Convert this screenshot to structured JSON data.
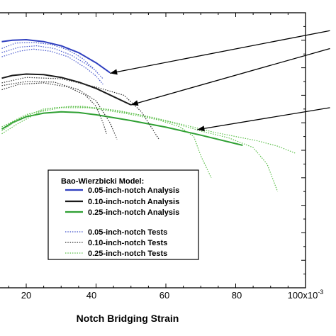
{
  "chart_data": {
    "type": "line",
    "xlabel": "Notch Bridging Strain",
    "ylabel": "",
    "x_tick_labels": [
      "20",
      "40",
      "60",
      "80",
      "100x10"
    ],
    "x_tick_values": [
      20,
      40,
      60,
      80,
      100
    ],
    "x_scale_exponent": "-3",
    "xlim": [
      13,
      103
    ],
    "ylim": [
      0,
      1
    ],
    "legend": {
      "title": "Bao-Wierzbicki Model:",
      "placement": "bottom-center",
      "entries": [
        "0.05-inch-notch Analysis",
        "0.10-inch-notch Analysis",
        "0.25-inch-notch Analysis",
        "0.05-inch-notch Tests",
        "0.10-inch-notch Tests",
        "0.25-inch-notch Tests"
      ]
    },
    "series": [
      {
        "name": "0.05-inch-notch Analysis",
        "style": "solid",
        "color": "#2f3fbf",
        "points": [
          [
            13,
            0.895
          ],
          [
            16,
            0.9
          ],
          [
            20,
            0.902
          ],
          [
            25,
            0.895
          ],
          [
            30,
            0.88
          ],
          [
            35,
            0.855
          ],
          [
            40,
            0.818
          ],
          [
            44,
            0.782
          ]
        ]
      },
      {
        "name": "0.10-inch-notch Analysis",
        "style": "solid",
        "color": "#1a1a1a",
        "points": [
          [
            13,
            0.762
          ],
          [
            16,
            0.772
          ],
          [
            20,
            0.777
          ],
          [
            25,
            0.775
          ],
          [
            30,
            0.765
          ],
          [
            35,
            0.748
          ],
          [
            40,
            0.725
          ],
          [
            45,
            0.695
          ],
          [
            50,
            0.665
          ]
        ]
      },
      {
        "name": "0.25-inch-notch Analysis",
        "style": "solid",
        "color": "#2fa033",
        "points": [
          [
            13,
            0.577
          ],
          [
            16,
            0.6
          ],
          [
            20,
            0.622
          ],
          [
            25,
            0.635
          ],
          [
            30,
            0.64
          ],
          [
            35,
            0.637
          ],
          [
            40,
            0.629
          ],
          [
            50,
            0.608
          ],
          [
            60,
            0.584
          ],
          [
            70,
            0.555
          ],
          [
            82,
            0.518
          ]
        ]
      },
      {
        "name": "0.05-inch-notch Tests",
        "style": "dotted",
        "color": "#4455cc",
        "points": [
          [
            13,
            0.84
          ],
          [
            18,
            0.86
          ],
          [
            22,
            0.868
          ],
          [
            27,
            0.86
          ],
          [
            32,
            0.84
          ],
          [
            37,
            0.8
          ],
          [
            40,
            0.77
          ],
          [
            42,
            0.74
          ]
        ]
      },
      {
        "name": "0.05-inch-notch Tests",
        "style": "dotted",
        "color": "#4455cc",
        "points": [
          [
            13,
            0.855
          ],
          [
            18,
            0.875
          ],
          [
            23,
            0.88
          ],
          [
            28,
            0.87
          ],
          [
            33,
            0.845
          ],
          [
            37,
            0.815
          ],
          [
            40,
            0.79
          ]
        ]
      },
      {
        "name": "0.05-inch-notch Tests",
        "style": "dotted",
        "color": "#4455cc",
        "points": [
          [
            13,
            0.87
          ],
          [
            17,
            0.89
          ],
          [
            22,
            0.892
          ],
          [
            27,
            0.885
          ],
          [
            32,
            0.865
          ],
          [
            36,
            0.835
          ],
          [
            39,
            0.8
          ],
          [
            42,
            0.76
          ]
        ]
      },
      {
        "name": "0.10-inch-notch Tests",
        "style": "dotted",
        "color": "#333333",
        "points": [
          [
            13,
            0.72
          ],
          [
            18,
            0.74
          ],
          [
            25,
            0.745
          ],
          [
            32,
            0.73
          ],
          [
            37,
            0.7
          ],
          [
            40,
            0.66
          ],
          [
            42,
            0.6
          ],
          [
            43,
            0.56
          ]
        ]
      },
      {
        "name": "0.10-inch-notch Tests",
        "style": "dotted",
        "color": "#333333",
        "points": [
          [
            13,
            0.735
          ],
          [
            20,
            0.75
          ],
          [
            28,
            0.748
          ],
          [
            35,
            0.72
          ],
          [
            40,
            0.68
          ],
          [
            44,
            0.6
          ],
          [
            46,
            0.54
          ]
        ]
      },
      {
        "name": "0.10-inch-notch Tests",
        "style": "dotted",
        "color": "#333333",
        "points": [
          [
            13,
            0.745
          ],
          [
            20,
            0.765
          ],
          [
            30,
            0.76
          ],
          [
            40,
            0.73
          ],
          [
            48,
            0.7
          ],
          [
            53,
            0.64
          ],
          [
            56,
            0.58
          ],
          [
            58,
            0.54
          ]
        ]
      },
      {
        "name": "0.25-inch-notch Tests",
        "style": "dotted",
        "color": "#5cbf4a",
        "points": [
          [
            13,
            0.56
          ],
          [
            18,
            0.6
          ],
          [
            24,
            0.64
          ],
          [
            30,
            0.655
          ],
          [
            38,
            0.655
          ],
          [
            48,
            0.635
          ],
          [
            58,
            0.61
          ],
          [
            64,
            0.585
          ],
          [
            68,
            0.55
          ],
          [
            70,
            0.48
          ],
          [
            73,
            0.4
          ]
        ]
      },
      {
        "name": "0.25-inch-notch Tests",
        "style": "dotted",
        "color": "#5cbf4a",
        "points": [
          [
            13,
            0.57
          ],
          [
            18,
            0.615
          ],
          [
            25,
            0.65
          ],
          [
            33,
            0.66
          ],
          [
            42,
            0.65
          ],
          [
            52,
            0.63
          ],
          [
            62,
            0.6
          ],
          [
            70,
            0.57
          ],
          [
            78,
            0.545
          ],
          [
            85,
            0.51
          ],
          [
            89,
            0.45
          ],
          [
            92,
            0.35
          ]
        ]
      },
      {
        "name": "0.25-inch-notch Tests",
        "style": "dotted",
        "color": "#5cbf4a",
        "points": [
          [
            13,
            0.585
          ],
          [
            20,
            0.63
          ],
          [
            28,
            0.655
          ],
          [
            36,
            0.66
          ],
          [
            46,
            0.645
          ],
          [
            56,
            0.62
          ],
          [
            66,
            0.59
          ],
          [
            74,
            0.565
          ],
          [
            80,
            0.55
          ],
          [
            86,
            0.535
          ],
          [
            92,
            0.515
          ],
          [
            97,
            0.49
          ]
        ]
      }
    ],
    "annotations": [
      {
        "type": "arrow",
        "from": [
          107,
          0.935
        ],
        "to": [
          44,
          0.78
        ]
      },
      {
        "type": "arrow",
        "from": [
          107,
          0.87
        ],
        "to": [
          50,
          0.665
        ]
      },
      {
        "type": "arrow",
        "from": [
          107,
          0.655
        ],
        "to": [
          69,
          0.575
        ]
      }
    ]
  }
}
